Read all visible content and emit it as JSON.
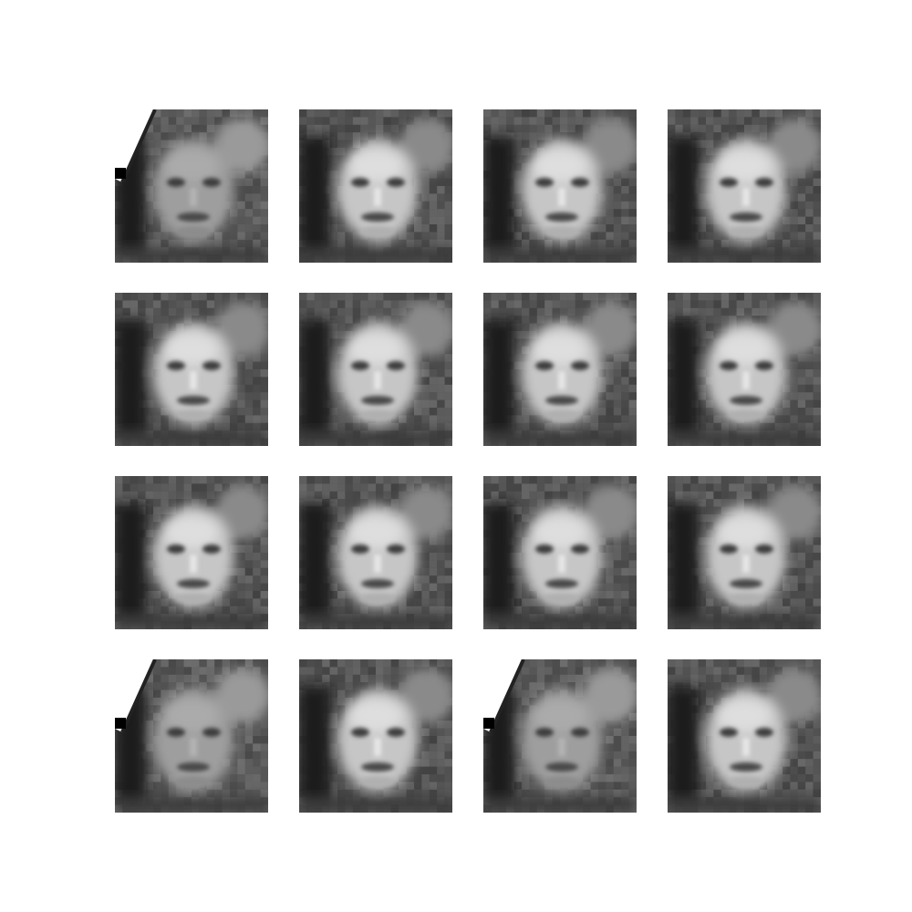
{
  "grid": {
    "rows": 4,
    "cols": 4,
    "tiles": [
      {
        "variant": "dull",
        "corner_artifact": true
      },
      {
        "variant": "bright",
        "corner_artifact": false
      },
      {
        "variant": "bright",
        "corner_artifact": false
      },
      {
        "variant": "bright",
        "corner_artifact": false
      },
      {
        "variant": "bright",
        "corner_artifact": false
      },
      {
        "variant": "bright",
        "corner_artifact": false
      },
      {
        "variant": "bright",
        "corner_artifact": false
      },
      {
        "variant": "bright",
        "corner_artifact": false
      },
      {
        "variant": "bright",
        "corner_artifact": false
      },
      {
        "variant": "bright",
        "corner_artifact": false
      },
      {
        "variant": "bright",
        "corner_artifact": false
      },
      {
        "variant": "bright",
        "corner_artifact": false
      },
      {
        "variant": "dull",
        "corner_artifact": true
      },
      {
        "variant": "bright",
        "corner_artifact": false
      },
      {
        "variant": "dull",
        "corner_artifact": true
      },
      {
        "variant": "bright",
        "corner_artifact": false
      }
    ]
  },
  "colors": {
    "background": "#ffffff",
    "dark": "#1a1a1a",
    "mid": "#5c5c5c",
    "light": "#c8c8c8"
  }
}
